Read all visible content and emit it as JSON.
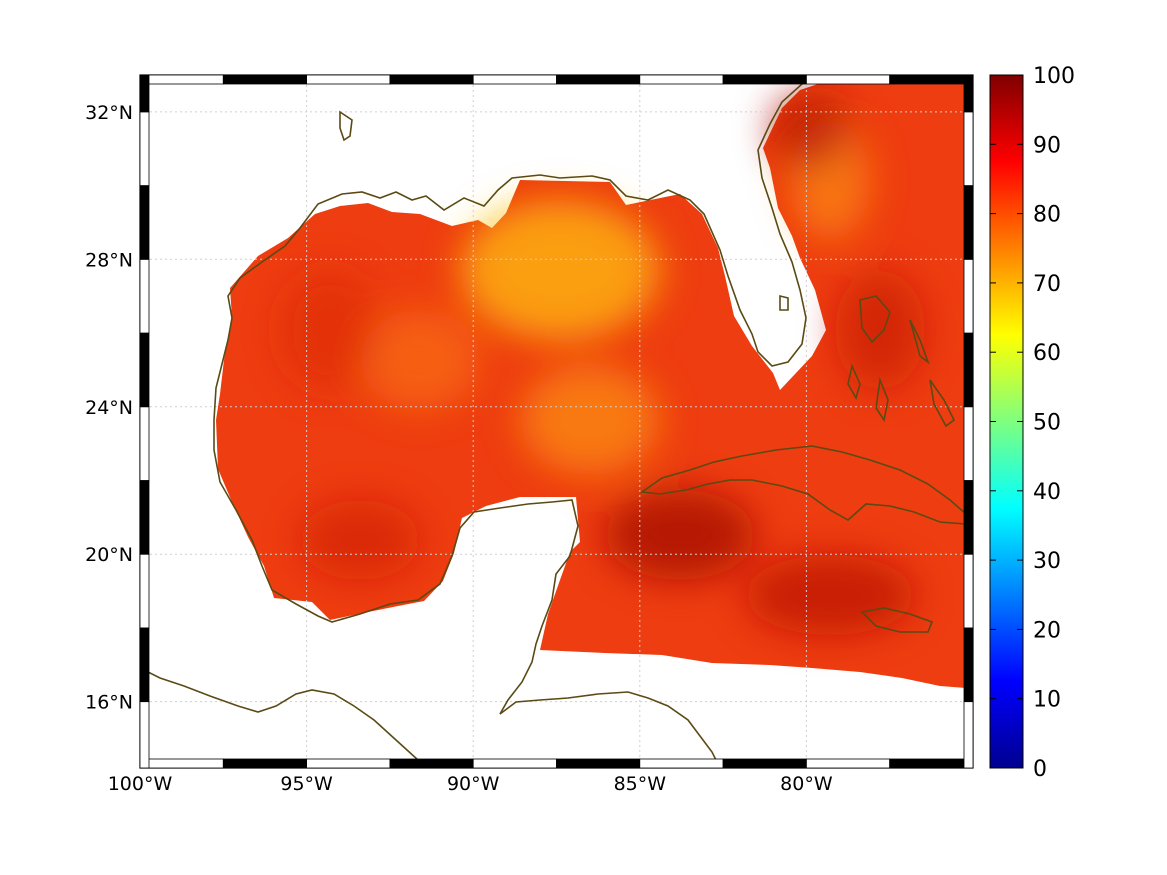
{
  "map": {
    "projection": "equirectangular",
    "lon_range": [
      -100,
      -75
    ],
    "lat_range": [
      14.2,
      33
    ],
    "grid": true,
    "lon_ticks": [
      {
        "value": -100,
        "label": "100°W"
      },
      {
        "value": -95,
        "label": "95°W"
      },
      {
        "value": -90,
        "label": "90°W"
      },
      {
        "value": -85,
        "label": "85°W"
      },
      {
        "value": -80,
        "label": "80°W"
      }
    ],
    "lat_ticks": [
      {
        "value": 32,
        "label": "32°N"
      },
      {
        "value": 28,
        "label": "28°N"
      },
      {
        "value": 24,
        "label": "24°N"
      },
      {
        "value": 20,
        "label": "20°N"
      },
      {
        "value": 16,
        "label": "16°N"
      }
    ],
    "coastline_color": "#5a4a14",
    "ocean_field_colors": {
      "dominant": "#ee3d10",
      "high": "#a81008",
      "low": "#ffbf10"
    }
  },
  "colorbar": {
    "colormap": "jet",
    "range": [
      0,
      100
    ],
    "ticks": [
      {
        "value": 100,
        "label": "100"
      },
      {
        "value": 90,
        "label": "90"
      },
      {
        "value": 80,
        "label": "80"
      },
      {
        "value": 70,
        "label": "70"
      },
      {
        "value": 60,
        "label": "60"
      },
      {
        "value": 50,
        "label": "50"
      },
      {
        "value": 40,
        "label": "40"
      },
      {
        "value": 30,
        "label": "30"
      },
      {
        "value": 20,
        "label": "20"
      },
      {
        "value": 10,
        "label": "10"
      },
      {
        "value": 0,
        "label": "0"
      }
    ]
  }
}
